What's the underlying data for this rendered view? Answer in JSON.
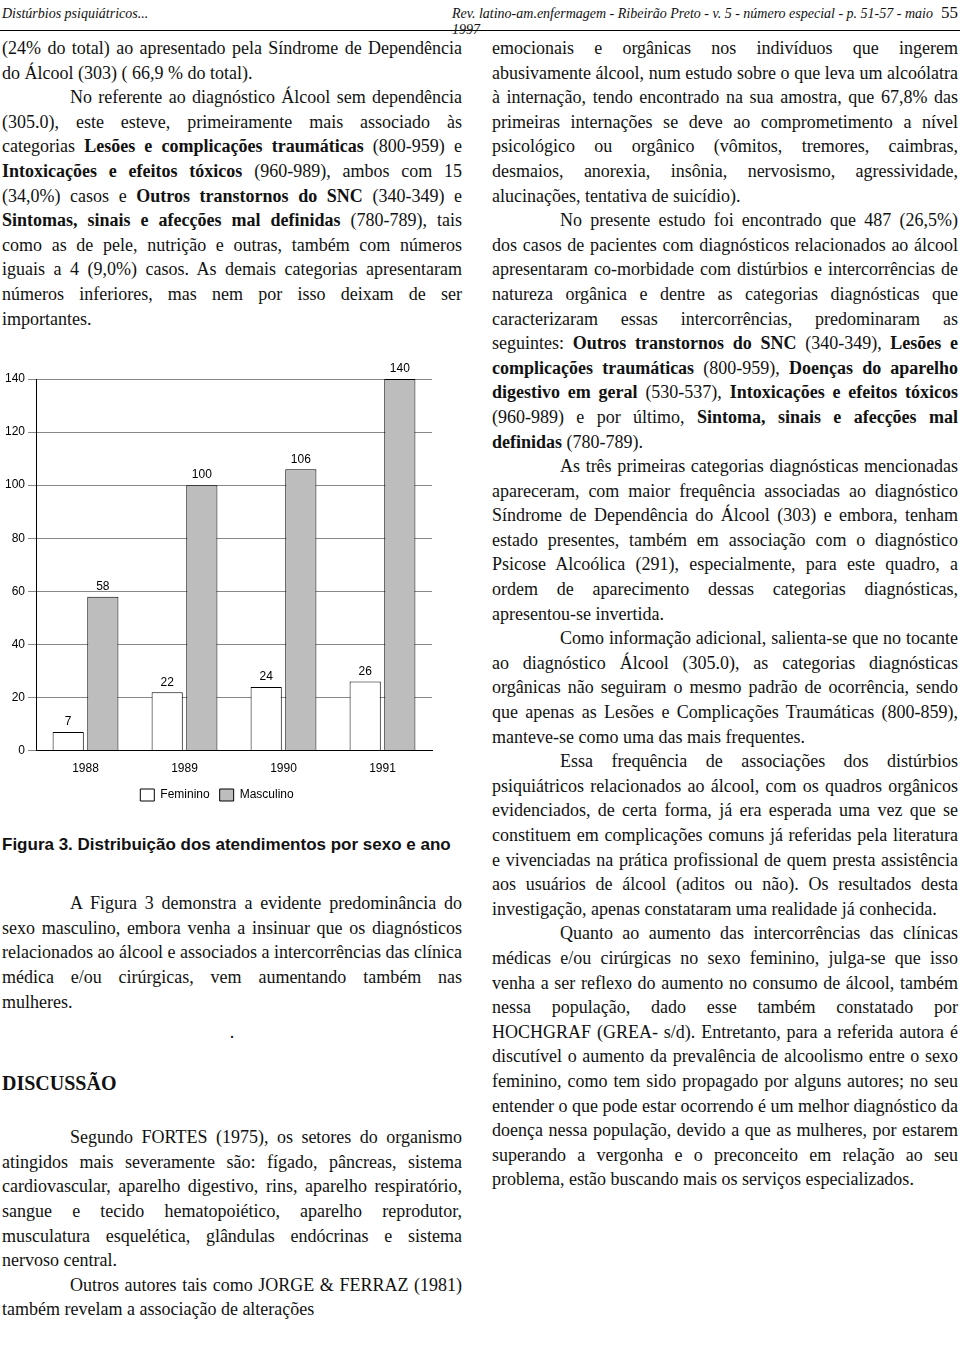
{
  "header": {
    "left": "Distúrbios psiquiátricos...",
    "center": "Rev. latino-am.enfermagem - Ribeirão Preto - v. 5 - número especial - p. 51-57 - maio 1997",
    "page": "55"
  },
  "left_column": {
    "continued": [
      "(24% do total) ao apresentado pela Síndrome de Dependência do Álcool (303) ( 66,9 % do total)."
    ],
    "paragraphs": [
      [
        "No referente ao diagnóstico Álcool sem dependência (305.0), este esteve, primeiramente mais associado às categorias ",
        {
          "bold": "Lesões e complicações traumáticas"
        },
        " (800-959) e ",
        {
          "bold": "Intoxicações e efeitos tóxicos"
        },
        " (960-989), ambos com 15 (34,0%) casos e ",
        {
          "bold": "Outros transtornos do SNC"
        },
        " (340-349) e ",
        {
          "bold": "Sintomas, sinais e afecções mal definidas"
        },
        " (780-789), tais como as de pele, nutrição e outras, também com números iguais a 4 (9,0%) casos. As demais categorias apresentaram números inferiores, mas nem por isso deixam de ser importantes."
      ]
    ],
    "caption": "Figura 3. Distribuição dos atendimentos por sexo e ano",
    "after_figure": [
      [
        "A Figura 3 demonstra a evidente predominância do sexo masculino, embora venha a insinuar que os diagnósticos relacionados ao álcool e associados a intercorrências das clínica médica e/ou cirúrgicas, vem aumentando também nas mulheres."
      ]
    ],
    "stray_mark": ".",
    "heading": "DISCUSSÃO",
    "discussion": [
      [
        "Segundo FORTES (1975), os setores do organismo atingidos mais severamente são: fígado, pâncreas, sistema cardiovascular, aparelho digestivo, rins, aparelho respiratório, sangue e tecido hematopoiético, aparelho reprodutor, musculatura esquelética, glândulas endócrinas e sistema nervoso central."
      ],
      [
        "Outros autores tais como JORGE & FERRAZ (1981) também revelam a associação de alterações"
      ]
    ]
  },
  "right_column": {
    "continued": [
      "emocionais e orgânicas nos indivíduos que ingerem abusivamente álcool, num estudo sobre o que leva um alcoólatra à internação, tendo encontrado na sua amostra, que 67,8% das primeiras internações se deve ao comprometimento a nível psicológico ou orgânico (vômitos, tremores, caimbras, desmaios, anorexia, insônia, nervosismo, agressividade, alucinações, tentativa de suicídio)."
    ],
    "paragraphs": [
      [
        "No presente estudo foi encontrado que 487 (26,5%) dos casos de pacientes com diagnósticos relacionados ao álcool apresentaram co-morbidade com distúrbios e intercorrências de natureza orgânica e dentre as categorias diagnósticas que caracterizaram essas intercorrências, predominaram as seguintes: ",
        {
          "bold": "Outros transtornos do SNC"
        },
        " (340-349), ",
        {
          "bold": "Lesões e complicações traumáticas"
        },
        " (800-959), ",
        {
          "bold": "Doenças do aparelho digestivo em geral"
        },
        " (530-537), ",
        {
          "bold": "Intoxicações e efeitos tóxicos"
        },
        " (960-989) e por último, ",
        {
          "bold": "Sintoma, sinais e afecções mal definidas"
        },
        " (780-789)."
      ],
      [
        "As três primeiras categorias diagnósticas mencionadas apareceram, com maior frequência associadas ao diagnóstico Síndrome de Dependência do Álcool (303) e embora, tenham estado presentes, também em associação com o diagnóstico Psicose Alcoólica (291), especialmente, para este quadro, a ordem de aparecimento dessas categorias diagnósticas, apresentou-se invertida."
      ],
      [
        "Como informação adicional, salienta-se que no tocante ao diagnóstico Álcool (305.0), as categorias diagnósticas orgânicas não seguiram o mesmo padrão de ocorrência, sendo que apenas as Lesões e Complicações Traumáticas (800-859), manteve-se como uma das mais frequentes."
      ],
      [
        "Essa frequência de associações dos distúrbios psiquiátricos relacionados ao álcool, com os quadros orgânicos evidenciados, de certa forma, já era esperada uma vez que se constituem em complicações comuns já referidas pela literatura e vivenciadas na prática profissional de quem presta assistência aos usuários de álcool (aditos ou não). Os resultados desta investigação, apenas constataram uma realidade já conhecida."
      ],
      [
        "Quanto ao aumento das intercorrências das clínicas médicas e/ou cirúrgicas no sexo feminino, julga-se que isso venha a ser reflexo do aumento no consumo de álcool, também nessa população, dado esse também constatado por HOCHGRAF (GREA- s/d). Entretanto, para a referida autora é discutível o aumento da prevalência de alcoolismo entre o sexo feminino, como tem sido propagado por alguns autores; no seu entender o que pode estar ocorrendo é um melhor diagnóstico da doença nessa população, devido a que as mulheres, por estarem superando a vergonha e o preconceito em relação ao seu problema, estão buscando mais os serviços especializados."
      ]
    ]
  },
  "chart_data": {
    "type": "bar",
    "categories": [
      "1988",
      "1989",
      "1990",
      "1991"
    ],
    "series": [
      {
        "name": "Feminino",
        "color": "#ffffff",
        "values": [
          7,
          22,
          24,
          26
        ]
      },
      {
        "name": "Masculino",
        "color": "#bdbdbd",
        "values": [
          58,
          100,
          106,
          140
        ]
      }
    ],
    "ylim": [
      0,
      140
    ],
    "yticks": [
      0,
      20,
      40,
      60,
      80,
      100,
      120,
      140
    ],
    "grid": true,
    "legend": "bottom",
    "data_labels": true
  }
}
